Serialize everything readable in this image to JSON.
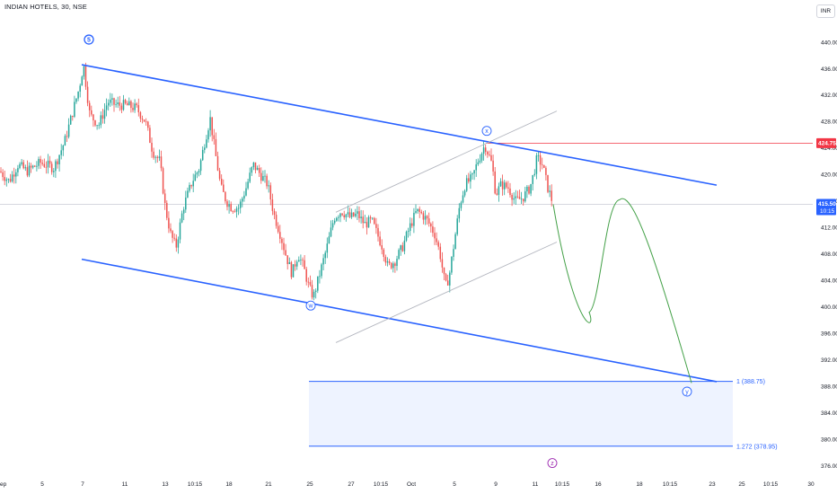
{
  "header": {
    "symbol_title": "INDIAN HOTELS, 30, NSE",
    "currency_button": "INR"
  },
  "colors": {
    "up": "#26a69a",
    "down": "#ef5350",
    "channel": "#2962ff",
    "wave_circle": "#2962ff",
    "wave_circle_purple": "#9c27b0",
    "projection": "#43a047",
    "red_level": "#f23645",
    "fib": "#2962ff",
    "fib_fill": "#eef3ff",
    "thin_channel": "#b2b5be"
  },
  "chart_data": {
    "type": "candlestick",
    "ylim": [
      373.5,
      446
    ],
    "y_ticks": [
      "440.00",
      "436.00",
      "432.00",
      "428.00",
      "424.00",
      "420.00",
      "416.00",
      "412.00",
      "408.00",
      "404.00",
      "400.00",
      "396.00",
      "392.00",
      "388.00",
      "384.00",
      "380.00",
      "376.00"
    ],
    "y_tick_values": [
      440,
      436,
      432,
      428,
      424,
      420,
      416,
      412,
      408,
      404,
      400,
      396,
      392,
      388,
      384,
      380,
      376
    ],
    "x_ticks": [
      "ep",
      "5",
      "7",
      "11",
      "13",
      "10:15",
      "18",
      "21",
      "25",
      "27",
      "10:15",
      "Oct",
      "5",
      "9",
      "11",
      "10:15",
      "16",
      "18",
      "10:15",
      "23",
      "25",
      "10:15",
      "30"
    ],
    "current_price": {
      "value": 415.5,
      "label": "415.50",
      "countdown": "10:15"
    },
    "red_level": {
      "value": 424.75,
      "label": "424.75"
    },
    "fib_levels": [
      {
        "ratio_label": "1 (388.75)",
        "value": 388.75
      },
      {
        "ratio_label": "1.272 (378.95)",
        "value": 378.95
      }
    ],
    "wave_labels": [
      "5",
      "w",
      "x",
      "y",
      "z"
    ],
    "channel_lines": [
      {
        "name": "upper-channel",
        "from": [
          91,
          436.6
        ],
        "to": [
          798,
          418.4
        ]
      },
      {
        "name": "lower-channel",
        "from": [
          91,
          407.2
        ],
        "to": [
          798,
          388.7
        ]
      }
    ],
    "thin_channel_lines": [
      {
        "from": [
          374,
          414.3
        ],
        "to": [
          620,
          429.6
        ]
      },
      {
        "from": [
          374,
          394.6
        ],
        "to": [
          620,
          409.8
        ]
      }
    ],
    "price_path": [
      [
        0,
        420.5
      ],
      [
        10,
        419
      ],
      [
        20,
        421.5
      ],
      [
        30,
        420.5
      ],
      [
        45,
        421.8
      ],
      [
        60,
        421
      ],
      [
        72,
        425
      ],
      [
        80,
        429
      ],
      [
        88,
        433
      ],
      [
        93,
        436.6
      ],
      [
        100,
        429
      ],
      [
        110,
        427.5
      ],
      [
        120,
        431
      ],
      [
        130,
        430.5
      ],
      [
        140,
        430.5
      ],
      [
        152,
        430
      ],
      [
        162,
        428
      ],
      [
        170,
        423.5
      ],
      [
        178,
        422
      ],
      [
        184,
        415
      ],
      [
        190,
        411
      ],
      [
        196,
        409
      ],
      [
        204,
        415
      ],
      [
        214,
        419
      ],
      [
        222,
        421
      ],
      [
        228,
        425
      ],
      [
        234,
        428.5
      ],
      [
        240,
        423
      ],
      [
        246,
        418
      ],
      [
        252,
        416
      ],
      [
        258,
        415
      ],
      [
        266,
        415
      ],
      [
        274,
        418
      ],
      [
        282,
        421.5
      ],
      [
        290,
        420
      ],
      [
        298,
        418.5
      ],
      [
        305,
        414
      ],
      [
        312,
        411
      ],
      [
        318,
        408
      ],
      [
        325,
        405
      ],
      [
        332,
        408
      ],
      [
        338,
        406
      ],
      [
        344,
        403
      ],
      [
        349,
        401.5
      ],
      [
        356,
        405
      ],
      [
        364,
        409
      ],
      [
        372,
        413.5
      ],
      [
        380,
        414.5
      ],
      [
        390,
        413.5
      ],
      [
        398,
        414
      ],
      [
        406,
        412.5
      ],
      [
        414,
        413
      ],
      [
        420,
        411
      ],
      [
        426,
        409
      ],
      [
        432,
        406
      ],
      [
        440,
        407
      ],
      [
        448,
        409
      ],
      [
        456,
        412
      ],
      [
        464,
        414.5
      ],
      [
        470,
        414
      ],
      [
        476,
        413
      ],
      [
        484,
        411
      ],
      [
        490,
        408
      ],
      [
        496,
        403
      ],
      [
        500,
        404.5
      ],
      [
        506,
        410
      ],
      [
        512,
        415.5
      ],
      [
        518,
        418.5
      ],
      [
        526,
        419.5
      ],
      [
        532,
        422
      ],
      [
        540,
        424.5
      ],
      [
        548,
        421.5
      ],
      [
        552,
        417
      ],
      [
        558,
        418.5
      ],
      [
        566,
        418
      ],
      [
        574,
        416
      ],
      [
        582,
        416.5
      ],
      [
        590,
        418
      ],
      [
        594,
        420
      ],
      [
        598,
        422.5
      ],
      [
        604,
        421.5
      ],
      [
        610,
        418
      ],
      [
        616,
        415.5
      ]
    ],
    "projection_curve": {
      "start": [
        616,
        415.5
      ],
      "control_points": [
        [
          640,
          396
        ],
        [
          665,
          396
        ],
        [
          690,
          416
        ],
        [
          705,
          418
        ],
        [
          735,
          405
        ],
        [
          770,
          388.5
        ]
      ]
    }
  }
}
